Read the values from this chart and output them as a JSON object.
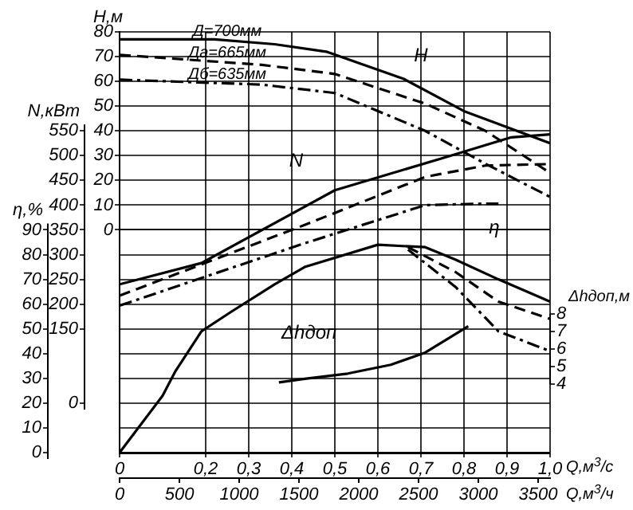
{
  "chart_data": [
    {
      "type": "line",
      "xlabel": "Q,м$^{3}$/с",
      "x2label": "Q,м$^{3}$/ч",
      "ylabel": "H,м",
      "y2label": "N,кВт",
      "y3label": "η,%",
      "xlim": [
        0,
        1.0
      ],
      "xticks": [
        0,
        {
          "value": 0.2,
          "label": "0,2"
        },
        {
          "value": 0.3,
          "label": "0,3"
        },
        {
          "value": 0.4,
          "label": "0,4"
        },
        {
          "value": 0.5,
          "label": "0,5"
        },
        {
          "value": 0.6,
          "label": "0,6"
        },
        {
          "value": 0.7,
          "label": "0,7"
        },
        {
          "value": 0.8,
          "label": "0,8"
        },
        {
          "value": 0.9,
          "label": "0,9"
        },
        {
          "value": 1.0,
          "label": "1,0"
        }
      ],
      "x2lim": [
        0,
        3600
      ],
      "x2ticks": [
        0,
        500,
        1000,
        1500,
        2000,
        2500,
        3000,
        3500
      ],
      "ylim": [
        -90,
        80
      ],
      "yticks": [
        0,
        10,
        20,
        30,
        40,
        50,
        60,
        70,
        80
      ],
      "y2lim": [
        -100,
        750
      ],
      "y2ticks": [
        0,
        150,
        200,
        250,
        300,
        350,
        400,
        450,
        500,
        550
      ],
      "y3lim": [
        0,
        170
      ],
      "y3ticks": [
        0,
        10,
        20,
        30,
        40,
        50,
        60,
        70,
        80,
        90
      ],
      "grid": true,
      "marker": "none",
      "series": [
        {
          "name": "Д=700мм",
          "color": "#000000",
          "axis": "y",
          "line_style": "solid",
          "x": [
            0,
            0.22,
            0.36,
            0.48,
            0.66,
            0.8,
            1.0
          ],
          "values": [
            77,
            77,
            75,
            72,
            61,
            48,
            35
          ]
        },
        {
          "name": "Дa=665мм",
          "color": "#000000",
          "axis": "y",
          "line_style": "dashed",
          "x": [
            0,
            0.33,
            0.5,
            0.71,
            0.85,
            1.0
          ],
          "values": [
            70.7,
            66.7,
            63,
            51,
            40,
            23
          ]
        },
        {
          "name": "Дб=635мм",
          "color": "#000000",
          "axis": "y",
          "line_style": "dotted",
          "x": [
            0,
            0.33,
            0.5,
            0.71,
            0.85,
            1.0
          ],
          "values": [
            60.7,
            58.7,
            55.3,
            40,
            26.7,
            13.3
          ]
        },
        {
          "color": "#000000",
          "axis": "y2",
          "line_style": "solid",
          "x": [
            0,
            0.19,
            0.5,
            0.77,
            0.91,
            1.0
          ],
          "values": [
            240,
            283,
            430,
            500,
            537,
            543
          ]
        },
        {
          "color": "#000000",
          "axis": "y2",
          "line_style": "dashed",
          "x": [
            0,
            0.43,
            0.71,
            0.85,
            1.0
          ],
          "values": [
            217,
            360,
            457,
            480,
            483
          ]
        },
        {
          "color": "#000000",
          "axis": "y2",
          "line_style": "dotted",
          "x": [
            0,
            0.43,
            0.71,
            0.85,
            0.88
          ],
          "values": [
            197,
            323,
            400,
            403,
            403
          ]
        },
        {
          "color": "#000000",
          "axis": "y3",
          "line_style": "solid",
          "x": [
            0,
            0.1,
            0.13,
            0.19,
            0.26,
            0.36,
            0.43,
            0.6,
            0.71,
            0.78,
            0.88,
            1.0
          ],
          "values": [
            0,
            23,
            33,
            49,
            57,
            68,
            75,
            84,
            83,
            78,
            70,
            61
          ]
        },
        {
          "color": "#000000",
          "axis": "y3",
          "line_style": "dashed",
          "x": [
            0.67,
            0.78,
            0.88,
            1.0
          ],
          "values": [
            83,
            73,
            61,
            54
          ]
        },
        {
          "color": "#000000",
          "axis": "y3",
          "line_style": "dotted",
          "x": [
            0.67,
            0.78,
            0.88,
            1.0
          ],
          "values": [
            82,
            67,
            49,
            41
          ]
        }
      ],
      "annotations": [
        "H",
        "N",
        "η"
      ]
    },
    {
      "type": "line",
      "ylabel": "Δhдоп,м",
      "xlim": [
        0,
        1.0
      ],
      "ylim": [
        4,
        8
      ],
      "yticks": [
        4,
        5,
        6,
        7,
        8
      ],
      "tick_labels": "y",
      "marker": "none",
      "series": [
        {
          "color": "#000000",
          "line_style": "solid",
          "x": [
            0.37,
            0.43,
            0.53,
            0.63,
            0.71,
            0.81
          ],
          "values": [
            4.1,
            4.3,
            4.6,
            5.1,
            5.8,
            7.3
          ]
        }
      ],
      "annotations": [
        "Δhдоп"
      ]
    }
  ]
}
